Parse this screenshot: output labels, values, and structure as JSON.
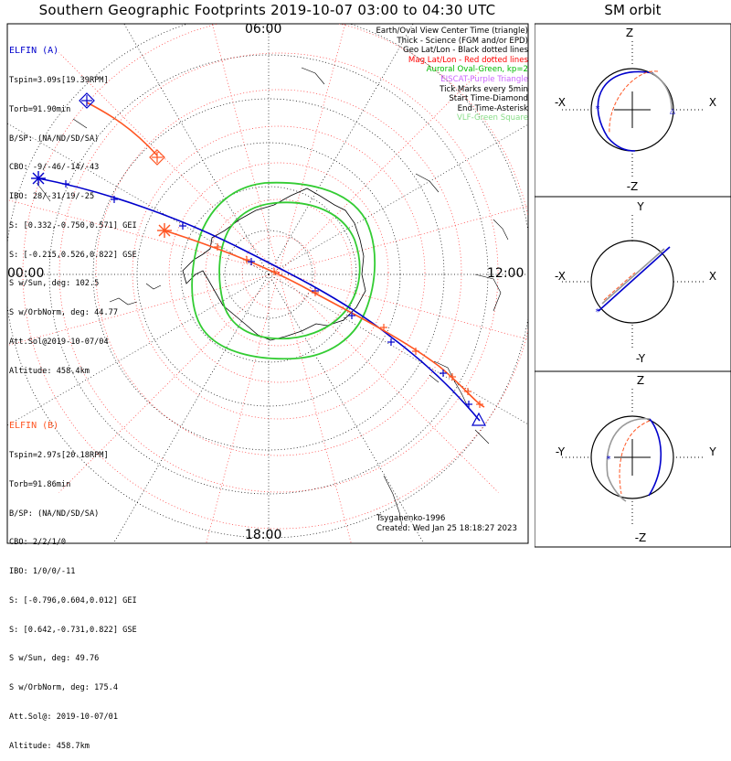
{
  "title": "Southern Geographic Footprints 2019-10-07 03:00 to 04:30 UTC",
  "sm_title": "SM orbit",
  "map": {
    "time_labels": {
      "top": "06:00",
      "left": "00:00",
      "right": "12:00",
      "bottom": "18:00"
    },
    "legend": [
      {
        "text": "Earth/Oval View Center Time (triangle)",
        "color": "#000000"
      },
      {
        "text": "Thick - Science (FGM and/or EPD)",
        "color": "#000000"
      },
      {
        "text": "Geo Lat/Lon - Black dotted lines",
        "color": "#000000"
      },
      {
        "text": "Mag Lat/Lon - Red dotted lines",
        "color": "#ff0000"
      },
      {
        "text": "Auroral Oval-Green, kp=2",
        "color": "#00bb00"
      },
      {
        "text": "EISCAT-Purple Triangle",
        "color": "#cc66ff"
      },
      {
        "text": "Tick Marks every 5min",
        "color": "#000000"
      },
      {
        "text": "Start Time-Diamond",
        "color": "#000000"
      },
      {
        "text": "End Time-Asterisk",
        "color": "#000000"
      },
      {
        "text": "VLF-Green Square",
        "color": "#88dd88"
      }
    ],
    "elfin_a": {
      "name": "ELFIN (A)",
      "color": "#0000cc",
      "lines": [
        "Tspin=3.09s[19.39RPM]",
        "Torb=91.90min",
        "B/SP: (NA/ND/SD/SA)",
        "CBO: -9/-46/-14/-43",
        "IBO: 28/-31/19/-25",
        "S: [0.332,-0.750,0.571] GEI",
        "S: [-0.215,0.526,0.822] GSE",
        "S w/Sun, deg: 102.5",
        "S w/OrbNorm, deg: 44.77",
        "Att.Sol@2019-10-07/04",
        "Altitude: 458.4km"
      ]
    },
    "elfin_b": {
      "name": "ELFIN (B)",
      "color": "#ff5522",
      "lines": [
        "Tspin=2.97s[20.18RPM]",
        "Torb=91.86min",
        "B/SP: (NA/ND/SD/SA)",
        "CBO: 2/2/1/0",
        "IBO: 1/0/0/-11",
        "S: [-0.796,0.604,0.012] GEI",
        "S: [0.642,-0.731,0.822] GSE",
        "S w/Sun, deg: 49.76",
        "S w/OrbNorm, deg: 175.4",
        "Att.Sol@: 2019-10-07/01",
        "Altitude: 458.7km"
      ]
    },
    "credit_model": "Tsyganenko-1996",
    "credit_created": "Created: Wed Jan 25 18:18:27 2023"
  },
  "orbit": {
    "panels": [
      {
        "top": "Z",
        "bottom": "-Z",
        "left": "-X",
        "right": "X"
      },
      {
        "top": "Y",
        "bottom": "-Y",
        "left": "-X",
        "right": "X"
      },
      {
        "top": "Z",
        "bottom": "-Z",
        "left": "-Y",
        "right": "Y"
      }
    ],
    "colors": {
      "a": "#0000cc",
      "b": "#ff5522",
      "trail": "#999999"
    }
  }
}
